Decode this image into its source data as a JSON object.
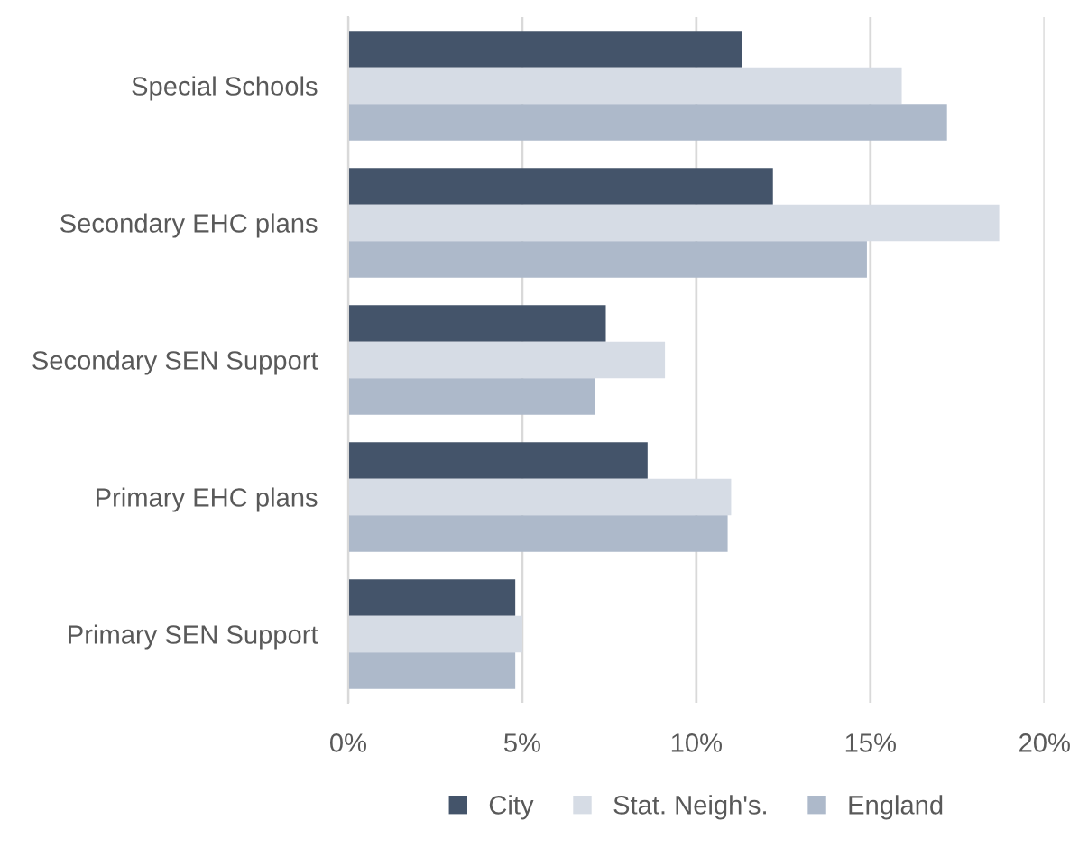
{
  "chart_data": {
    "type": "bar",
    "orientation": "horizontal",
    "categories": [
      "Special Schools",
      "Secondary EHC plans",
      "Secondary SEN Support",
      "Primary EHC plans",
      "Primary SEN Support"
    ],
    "series": [
      {
        "name": "City",
        "color": "#44546a",
        "values": [
          11.3,
          12.2,
          7.4,
          8.6,
          4.8
        ]
      },
      {
        "name": "Stat. Neigh's.",
        "color": "#d6dce5",
        "values": [
          15.9,
          18.7,
          9.1,
          11.0,
          5.0
        ]
      },
      {
        "name": "England",
        "color": "#adb9ca",
        "values": [
          17.2,
          14.9,
          7.1,
          10.9,
          4.8
        ]
      }
    ],
    "xlim": [
      0,
      20
    ],
    "xticks": [
      {
        "value": 0,
        "label": "0%"
      },
      {
        "value": 5,
        "label": "5%"
      },
      {
        "value": 10,
        "label": "10%"
      },
      {
        "value": 15,
        "label": "15%"
      },
      {
        "value": 20,
        "label": "20%"
      }
    ],
    "grid": "x",
    "legend": "bottom"
  }
}
